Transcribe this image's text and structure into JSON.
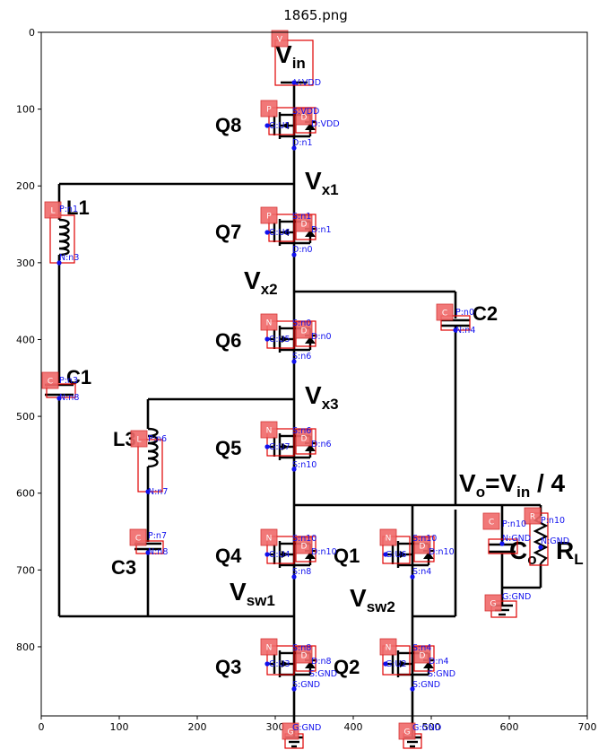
{
  "title": "1865.png",
  "axes": {
    "xticks": [
      "0",
      "100",
      "200",
      "300",
      "400",
      "500",
      "600",
      "700"
    ],
    "yticks": [
      "0",
      "100",
      "200",
      "300",
      "400",
      "500",
      "600",
      "700",
      "800"
    ],
    "xlim": [
      0,
      700
    ],
    "ylim": [
      890,
      0
    ]
  },
  "labels": {
    "vin": "V",
    "vin_sub": "in",
    "vx1": "V",
    "vx1_sub": "x1",
    "vx2": "V",
    "vx2_sub": "x2",
    "vx3": "V",
    "vx3_sub": "x3",
    "vsw1": "V",
    "vsw1_sub": "sw1",
    "vsw2": "V",
    "vsw2_sub": "sw2",
    "vo_a": "V",
    "vo_sub": "o",
    "vo_b": "=V",
    "vo_sub2": "in",
    "vo_c": " / 4",
    "co": "C",
    "co_sub": "o",
    "rl": "R",
    "rl_sub": "L",
    "q8": "Q8",
    "q7": "Q7",
    "q6": "Q6",
    "q5": "Q5",
    "q4": "Q4",
    "q3": "Q3",
    "q2": "Q2",
    "q1": "Q1",
    "l1": "L1",
    "l3": "L3",
    "c1": "C1",
    "c2": "C2",
    "c3": "C3"
  },
  "badges": {
    "v": "V",
    "p": "P",
    "d": "D",
    "n": "N",
    "l": "L",
    "c": "C",
    "r": "R",
    "g": "G"
  },
  "annotations": {
    "vin_vdd": "V:VDD",
    "q8_s": "S:VDD",
    "q8_d": "D:VDD",
    "q8_g": "G:U1",
    "q8_n": "D:n1",
    "q7_s": "S:n1",
    "q7_d": "D:n1",
    "q7_g": "G:U6",
    "q7_n": "D:n0",
    "l1_p": "P:n1",
    "l1_n": "N:n3",
    "q6_s": "S:n0",
    "q6_d": "D:n0",
    "q6_g": "G:U5",
    "q6_n": "S:n6",
    "c2_p": "P:n0",
    "c2_n": "N:n4",
    "c1_p": "P:n3",
    "c1_n": "N:n8",
    "q5_s": "S:n6",
    "q5_d": "D:n6",
    "q5_g": "G:U7",
    "q5_n": "S:n10",
    "l3_p": "P:n6",
    "l3_n": "N:n7",
    "c3_p": "P:n7",
    "c3_n": "N:n8",
    "q4_s": "S:n10",
    "q4_d": "D:n10",
    "q4_g": "G:U4",
    "q4_n": "S:n8",
    "q1_s": "S:n10",
    "q1_d": "D:n10",
    "q1_g": "G:U6",
    "q1_n": "S:n4",
    "co_p": "P:n10",
    "co_n": "N:GND",
    "rl_p": "P:n10",
    "rl_n": "N:GND",
    "g_gnd": "G:GND",
    "q3_s": "S:n8",
    "q3_d": "D:n8",
    "q3_g": "G:U3",
    "q3_n": "S:GND",
    "q3_g2": "G:GND",
    "q2_s": "S:n4",
    "q2_d": "D:n4",
    "q2_g": "G:U2",
    "q2_n": "S:GND",
    "q2_g2": "G:GND"
  }
}
